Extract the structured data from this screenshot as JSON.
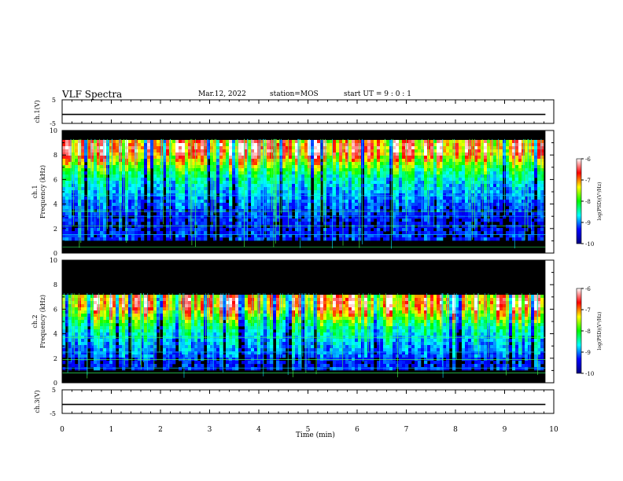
{
  "header": {
    "title": "VLF Spectra",
    "date": "Mar.12, 2022",
    "station": "station=MOS",
    "start_ut": "start UT =  9 : 0 : 1"
  },
  "chart_data": [
    {
      "type": "line",
      "name": "ch.1 waveform",
      "ylabel": "ch.1(V)",
      "ylim": [
        -5,
        5
      ],
      "yticks": [
        5,
        -5
      ],
      "x_range_min": [
        0,
        9.83
      ],
      "level_v": -1.2
    },
    {
      "type": "heatmap",
      "ylabel_line1": "ch.1",
      "ylabel_line2": "Frequency (kHz)",
      "ylim": [
        0,
        10
      ],
      "yticks": [
        0,
        2,
        4,
        6,
        8,
        10
      ],
      "x_range_min": [
        0,
        9.83
      ],
      "band_peak_khz": 8.7,
      "colorbar_label": "log(PSD)(V²/Hz)",
      "colorbar_ticks": [
        -6,
        -7,
        -8,
        -9,
        -10
      ]
    },
    {
      "type": "heatmap",
      "ylabel_line1": "ch.2",
      "ylabel_line2": "Frequency (kHz)",
      "ylim": [
        0,
        10
      ],
      "yticks": [
        0,
        2,
        4,
        6,
        8,
        10
      ],
      "x_range_min": [
        0,
        9.83
      ],
      "band_peak_khz": 6.7,
      "colorbar_label": "log(PSD)(V²/Hz)",
      "colorbar_ticks": [
        -6,
        -7,
        -8,
        -9,
        -10
      ]
    },
    {
      "type": "line",
      "name": "ch.3 waveform",
      "ylabel": "ch.3(V)",
      "ylim": [
        -5,
        5
      ],
      "yticks": [
        5,
        -5
      ],
      "x_range_min": [
        0,
        9.83
      ],
      "level_v": -1.2
    }
  ],
  "xaxis": {
    "label": "Time (min)",
    "xlim": [
      0,
      10
    ],
    "ticks": [
      0,
      1,
      2,
      3,
      4,
      5,
      6,
      7,
      8,
      9,
      10
    ]
  },
  "colors": {
    "background": "#000000",
    "colormap": [
      "#00007f",
      "#0000ff",
      "#00ffff",
      "#00ff00",
      "#ffff00",
      "#ff0000",
      "#ffffff"
    ]
  }
}
